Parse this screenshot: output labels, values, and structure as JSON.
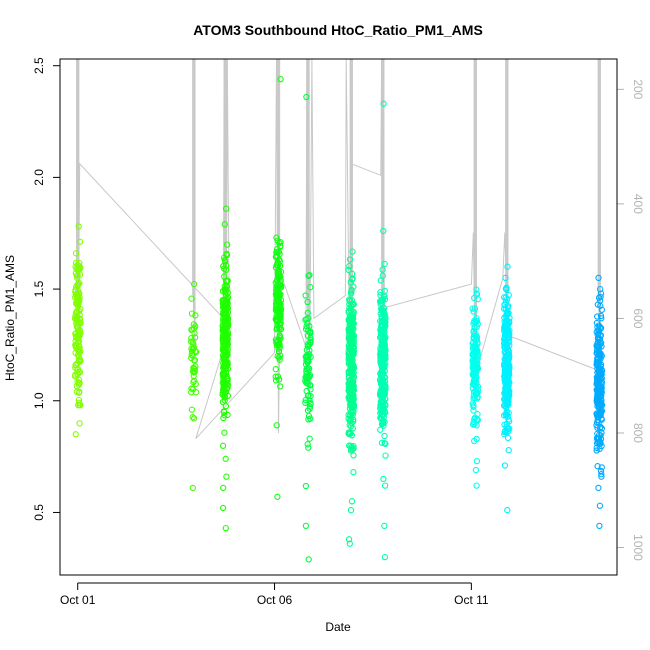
{
  "chart_data": {
    "type": "scatter",
    "title": "ATOM3 Southbound HtoC_Ratio_PM1_AMS",
    "xlabel": "Date",
    "ylabel": "HtoC_Ratio_PM1_AMS",
    "x_ticks": [
      {
        "day": 1,
        "label": "Oct 01"
      },
      {
        "day": 6,
        "label": "Oct 06"
      },
      {
        "day": 11,
        "label": "Oct 11"
      }
    ],
    "y_ticks": [
      {
        "value": 0.5,
        "label": "0.5"
      },
      {
        "value": 1.0,
        "label": "1.0"
      },
      {
        "value": 1.5,
        "label": "1.5"
      },
      {
        "value": 2.0,
        "label": "2.0"
      },
      {
        "value": 2.5,
        "label": "2.5"
      }
    ],
    "y2_ticks": [
      {
        "value": 200,
        "label": "200"
      },
      {
        "value": 400,
        "label": "400"
      },
      {
        "value": 600,
        "label": "600"
      },
      {
        "value": 800,
        "label": "800"
      },
      {
        "value": 1000,
        "label": "1000"
      }
    ],
    "xlim": [
      0.55,
      14.7
    ],
    "ylim": [
      0.22,
      2.53
    ],
    "y2lim": [
      1048,
      147
    ],
    "y2_reversed": true,
    "grid": false,
    "series": [
      {
        "day": 1.0,
        "color": "#80ff00",
        "n": 140,
        "center": 1.32,
        "spread": 0.16,
        "outliers": [
          0.85,
          0.98,
          1.66,
          1.78
        ]
      },
      {
        "day": 3.95,
        "color": "#40ff00",
        "n": 45,
        "center": 1.18,
        "spread": 0.13,
        "outliers": [
          0.61,
          0.96
        ]
      },
      {
        "day": 4.75,
        "color": "#20ff00",
        "n": 260,
        "center": 1.28,
        "spread": 0.17,
        "outliers": [
          0.43,
          0.52,
          0.61,
          0.66,
          0.74,
          1.79,
          1.86
        ]
      },
      {
        "day": 6.1,
        "color": "#10ff10",
        "n": 150,
        "center": 1.43,
        "spread": 0.15,
        "outliers": [
          0.57,
          0.89,
          1.69,
          1.73,
          2.44
        ]
      },
      {
        "day": 6.85,
        "color": "#00ff40",
        "n": 80,
        "center": 1.18,
        "spread": 0.18,
        "outliers": [
          0.29,
          0.44,
          0.79,
          0.83,
          2.36
        ]
      },
      {
        "day": 7.95,
        "color": "#00ff90",
        "n": 300,
        "center": 1.18,
        "spread": 0.18,
        "outliers": [
          0.36,
          0.38,
          0.51,
          0.55,
          0.68,
          1.48,
          1.53
        ]
      },
      {
        "day": 8.75,
        "color": "#00ffb0",
        "n": 260,
        "center": 1.18,
        "spread": 0.17,
        "outliers": [
          0.3,
          0.44,
          0.62,
          0.65,
          1.56,
          1.76,
          2.33
        ]
      },
      {
        "day": 11.1,
        "color": "#00ffee",
        "n": 150,
        "center": 1.17,
        "spread": 0.13,
        "outliers": [
          0.62,
          0.69,
          0.73,
          0.82,
          1.46,
          1.48
        ]
      },
      {
        "day": 11.9,
        "color": "#00f0ff",
        "n": 260,
        "center": 1.16,
        "spread": 0.15,
        "outliers": [
          0.51,
          0.71,
          1.55,
          1.6
        ]
      },
      {
        "day": 14.25,
        "color": "#00aaff",
        "n": 220,
        "center": 1.08,
        "spread": 0.16,
        "outliers": [
          0.44,
          0.53,
          0.61,
          0.66,
          1.5,
          1.55
        ]
      }
    ],
    "altitude_track": [
      {
        "day": 1.0,
        "alt": 148
      },
      {
        "day": 1.02,
        "alt": 580
      },
      {
        "day": 1.05,
        "alt": 330
      },
      {
        "day": 4.7,
        "alt": 600
      },
      {
        "day": 4.72,
        "alt": 147
      },
      {
        "day": 4.78,
        "alt": 560
      },
      {
        "day": 4.8,
        "alt": 147
      },
      {
        "day": 4.85,
        "alt": 620
      },
      {
        "day": 4.0,
        "alt": 810
      },
      {
        "day": 6.0,
        "alt": 660
      },
      {
        "day": 6.05,
        "alt": 147
      },
      {
        "day": 6.1,
        "alt": 800
      },
      {
        "day": 6.15,
        "alt": 520
      },
      {
        "day": 6.8,
        "alt": 650
      },
      {
        "day": 6.82,
        "alt": 147
      },
      {
        "day": 6.9,
        "alt": 620
      },
      {
        "day": 6.95,
        "alt": 147
      },
      {
        "day": 7.0,
        "alt": 600
      },
      {
        "day": 7.8,
        "alt": 560
      },
      {
        "day": 7.82,
        "alt": 147
      },
      {
        "day": 7.9,
        "alt": 620
      },
      {
        "day": 7.95,
        "alt": 330
      },
      {
        "day": 8.7,
        "alt": 350
      },
      {
        "day": 8.72,
        "alt": 147
      },
      {
        "day": 8.8,
        "alt": 610
      },
      {
        "day": 8.85,
        "alt": 580
      },
      {
        "day": 11.0,
        "alt": 540
      },
      {
        "day": 11.05,
        "alt": 450
      },
      {
        "day": 11.1,
        "alt": 700
      },
      {
        "day": 11.8,
        "alt": 530
      },
      {
        "day": 11.85,
        "alt": 450
      },
      {
        "day": 11.9,
        "alt": 560
      },
      {
        "day": 11.95,
        "alt": 630
      },
      {
        "day": 14.2,
        "alt": 690
      }
    ]
  }
}
